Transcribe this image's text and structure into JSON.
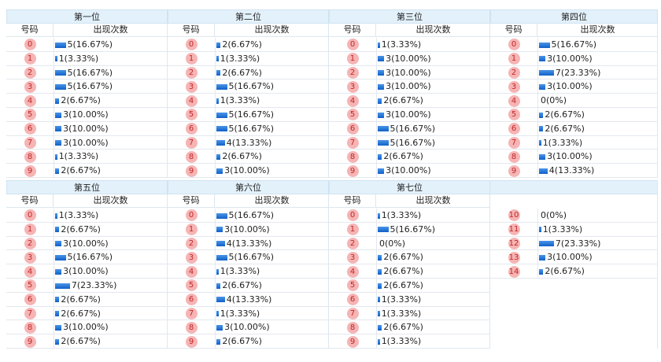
{
  "columns": [
    "号码",
    "出现次数"
  ],
  "panels": [
    {
      "title": "第一位",
      "rows": [
        {
          "number": "0",
          "count": 5,
          "label": "5(16.67%)"
        },
        {
          "number": "1",
          "count": 1,
          "label": "1(3.33%)"
        },
        {
          "number": "2",
          "count": 5,
          "label": "5(16.67%)"
        },
        {
          "number": "3",
          "count": 5,
          "label": "5(16.67%)"
        },
        {
          "number": "4",
          "count": 2,
          "label": "2(6.67%)"
        },
        {
          "number": "5",
          "count": 3,
          "label": "3(10.00%)"
        },
        {
          "number": "6",
          "count": 3,
          "label": "3(10.00%)"
        },
        {
          "number": "7",
          "count": 3,
          "label": "3(10.00%)"
        },
        {
          "number": "8",
          "count": 1,
          "label": "1(3.33%)"
        },
        {
          "number": "9",
          "count": 2,
          "label": "2(6.67%)"
        }
      ]
    },
    {
      "title": "第二位",
      "rows": [
        {
          "number": "0",
          "count": 2,
          "label": "2(6.67%)"
        },
        {
          "number": "1",
          "count": 1,
          "label": "1(3.33%)"
        },
        {
          "number": "2",
          "count": 2,
          "label": "2(6.67%)"
        },
        {
          "number": "3",
          "count": 5,
          "label": "5(16.67%)"
        },
        {
          "number": "4",
          "count": 1,
          "label": "1(3.33%)"
        },
        {
          "number": "5",
          "count": 5,
          "label": "5(16.67%)"
        },
        {
          "number": "6",
          "count": 5,
          "label": "5(16.67%)"
        },
        {
          "number": "7",
          "count": 4,
          "label": "4(13.33%)"
        },
        {
          "number": "8",
          "count": 2,
          "label": "2(6.67%)"
        },
        {
          "number": "9",
          "count": 3,
          "label": "3(10.00%)"
        }
      ]
    },
    {
      "title": "第三位",
      "rows": [
        {
          "number": "0",
          "count": 1,
          "label": "1(3.33%)"
        },
        {
          "number": "1",
          "count": 3,
          "label": "3(10.00%)"
        },
        {
          "number": "2",
          "count": 3,
          "label": "3(10.00%)"
        },
        {
          "number": "3",
          "count": 3,
          "label": "3(10.00%)"
        },
        {
          "number": "4",
          "count": 2,
          "label": "2(6.67%)"
        },
        {
          "number": "5",
          "count": 3,
          "label": "3(10.00%)"
        },
        {
          "number": "6",
          "count": 5,
          "label": "5(16.67%)"
        },
        {
          "number": "7",
          "count": 5,
          "label": "5(16.67%)"
        },
        {
          "number": "8",
          "count": 2,
          "label": "2(6.67%)"
        },
        {
          "number": "9",
          "count": 3,
          "label": "3(10.00%)"
        }
      ]
    },
    {
      "title": "第四位",
      "rows": [
        {
          "number": "0",
          "count": 5,
          "label": "5(16.67%)"
        },
        {
          "number": "1",
          "count": 3,
          "label": "3(10.00%)"
        },
        {
          "number": "2",
          "count": 7,
          "label": "7(23.33%)"
        },
        {
          "number": "3",
          "count": 3,
          "label": "3(10.00%)"
        },
        {
          "number": "4",
          "count": 0,
          "label": "0(0%)"
        },
        {
          "number": "5",
          "count": 2,
          "label": "2(6.67%)"
        },
        {
          "number": "6",
          "count": 2,
          "label": "2(6.67%)"
        },
        {
          "number": "7",
          "count": 1,
          "label": "1(3.33%)"
        },
        {
          "number": "8",
          "count": 3,
          "label": "3(10.00%)"
        },
        {
          "number": "9",
          "count": 4,
          "label": "4(13.33%)"
        }
      ]
    },
    {
      "title": "第五位",
      "rows": [
        {
          "number": "0",
          "count": 1,
          "label": "1(3.33%)"
        },
        {
          "number": "1",
          "count": 2,
          "label": "2(6.67%)"
        },
        {
          "number": "2",
          "count": 3,
          "label": "3(10.00%)"
        },
        {
          "number": "3",
          "count": 5,
          "label": "5(16.67%)"
        },
        {
          "number": "4",
          "count": 3,
          "label": "3(10.00%)"
        },
        {
          "number": "5",
          "count": 7,
          "label": "7(23.33%)"
        },
        {
          "number": "6",
          "count": 2,
          "label": "2(6.67%)"
        },
        {
          "number": "7",
          "count": 2,
          "label": "2(6.67%)"
        },
        {
          "number": "8",
          "count": 3,
          "label": "3(10.00%)"
        },
        {
          "number": "9",
          "count": 2,
          "label": "2(6.67%)"
        }
      ]
    },
    {
      "title": "第六位",
      "rows": [
        {
          "number": "0",
          "count": 5,
          "label": "5(16.67%)"
        },
        {
          "number": "1",
          "count": 3,
          "label": "3(10.00%)"
        },
        {
          "number": "2",
          "count": 4,
          "label": "4(13.33%)"
        },
        {
          "number": "3",
          "count": 5,
          "label": "5(16.67%)"
        },
        {
          "number": "4",
          "count": 1,
          "label": "1(3.33%)"
        },
        {
          "number": "5",
          "count": 2,
          "label": "2(6.67%)"
        },
        {
          "number": "6",
          "count": 4,
          "label": "4(13.33%)"
        },
        {
          "number": "7",
          "count": 1,
          "label": "1(3.33%)"
        },
        {
          "number": "8",
          "count": 3,
          "label": "3(10.00%)"
        },
        {
          "number": "9",
          "count": 2,
          "label": "2(6.67%)"
        }
      ]
    },
    {
      "title": "第七位",
      "rows": [
        {
          "number": "0",
          "count": 1,
          "label": "1(3.33%)"
        },
        {
          "number": "1",
          "count": 5,
          "label": "5(16.67%)"
        },
        {
          "number": "2",
          "count": 0,
          "label": "0(0%)"
        },
        {
          "number": "3",
          "count": 2,
          "label": "2(6.67%)"
        },
        {
          "number": "4",
          "count": 2,
          "label": "2(6.67%)"
        },
        {
          "number": "5",
          "count": 2,
          "label": "2(6.67%)"
        },
        {
          "number": "6",
          "count": 1,
          "label": "1(3.33%)"
        },
        {
          "number": "7",
          "count": 1,
          "label": "1(3.33%)"
        },
        {
          "number": "8",
          "count": 2,
          "label": "2(6.67%)"
        },
        {
          "number": "9",
          "count": 1,
          "label": "1(3.33%)"
        }
      ]
    },
    {
      "rows": [
        {
          "number": "10",
          "count": 0,
          "label": "0(0%)"
        },
        {
          "number": "11",
          "count": 1,
          "label": "1(3.33%)"
        },
        {
          "number": "12",
          "count": 7,
          "label": "7(23.33%)"
        },
        {
          "number": "13",
          "count": 3,
          "label": "3(10.00%)"
        },
        {
          "number": "14",
          "count": 2,
          "label": "2(6.67%)"
        }
      ]
    }
  ]
}
